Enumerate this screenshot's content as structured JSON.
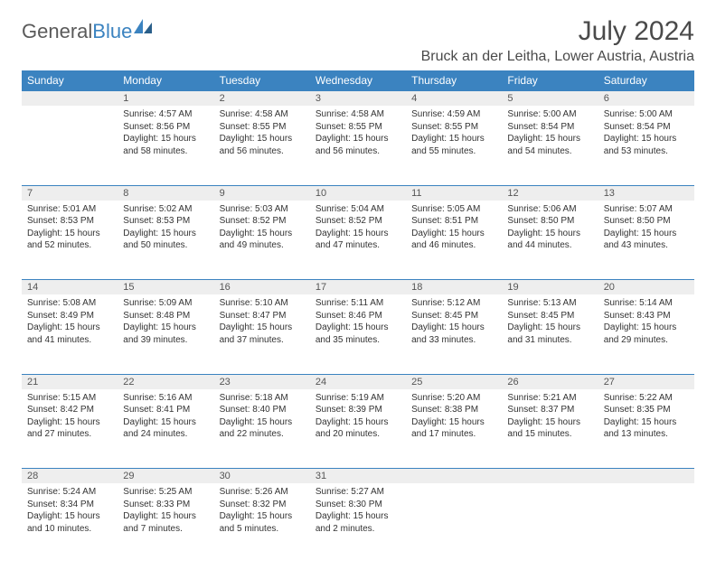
{
  "logo": {
    "word1": "General",
    "word2": "Blue"
  },
  "title": "July 2024",
  "location": "Bruck an der Leitha, Lower Austria, Austria",
  "colors": {
    "header_bg": "#3b83c0",
    "header_text": "#ffffff",
    "daynum_bg": "#eeeeee",
    "border": "#3b83c0",
    "text": "#333333",
    "title_text": "#4a4a4a",
    "logo_gray": "#5a5a5a",
    "logo_blue": "#3b83c0"
  },
  "weekdays": [
    "Sunday",
    "Monday",
    "Tuesday",
    "Wednesday",
    "Thursday",
    "Friday",
    "Saturday"
  ],
  "weeks": [
    {
      "nums": [
        "",
        "1",
        "2",
        "3",
        "4",
        "5",
        "6"
      ],
      "cells": [
        null,
        {
          "sr": "Sunrise: 4:57 AM",
          "ss": "Sunset: 8:56 PM",
          "d1": "Daylight: 15 hours",
          "d2": "and 58 minutes."
        },
        {
          "sr": "Sunrise: 4:58 AM",
          "ss": "Sunset: 8:55 PM",
          "d1": "Daylight: 15 hours",
          "d2": "and 56 minutes."
        },
        {
          "sr": "Sunrise: 4:58 AM",
          "ss": "Sunset: 8:55 PM",
          "d1": "Daylight: 15 hours",
          "d2": "and 56 minutes."
        },
        {
          "sr": "Sunrise: 4:59 AM",
          "ss": "Sunset: 8:55 PM",
          "d1": "Daylight: 15 hours",
          "d2": "and 55 minutes."
        },
        {
          "sr": "Sunrise: 5:00 AM",
          "ss": "Sunset: 8:54 PM",
          "d1": "Daylight: 15 hours",
          "d2": "and 54 minutes."
        },
        {
          "sr": "Sunrise: 5:00 AM",
          "ss": "Sunset: 8:54 PM",
          "d1": "Daylight: 15 hours",
          "d2": "and 53 minutes."
        }
      ]
    },
    {
      "nums": [
        "7",
        "8",
        "9",
        "10",
        "11",
        "12",
        "13"
      ],
      "cells": [
        {
          "sr": "Sunrise: 5:01 AM",
          "ss": "Sunset: 8:53 PM",
          "d1": "Daylight: 15 hours",
          "d2": "and 52 minutes."
        },
        {
          "sr": "Sunrise: 5:02 AM",
          "ss": "Sunset: 8:53 PM",
          "d1": "Daylight: 15 hours",
          "d2": "and 50 minutes."
        },
        {
          "sr": "Sunrise: 5:03 AM",
          "ss": "Sunset: 8:52 PM",
          "d1": "Daylight: 15 hours",
          "d2": "and 49 minutes."
        },
        {
          "sr": "Sunrise: 5:04 AM",
          "ss": "Sunset: 8:52 PM",
          "d1": "Daylight: 15 hours",
          "d2": "and 47 minutes."
        },
        {
          "sr": "Sunrise: 5:05 AM",
          "ss": "Sunset: 8:51 PM",
          "d1": "Daylight: 15 hours",
          "d2": "and 46 minutes."
        },
        {
          "sr": "Sunrise: 5:06 AM",
          "ss": "Sunset: 8:50 PM",
          "d1": "Daylight: 15 hours",
          "d2": "and 44 minutes."
        },
        {
          "sr": "Sunrise: 5:07 AM",
          "ss": "Sunset: 8:50 PM",
          "d1": "Daylight: 15 hours",
          "d2": "and 43 minutes."
        }
      ]
    },
    {
      "nums": [
        "14",
        "15",
        "16",
        "17",
        "18",
        "19",
        "20"
      ],
      "cells": [
        {
          "sr": "Sunrise: 5:08 AM",
          "ss": "Sunset: 8:49 PM",
          "d1": "Daylight: 15 hours",
          "d2": "and 41 minutes."
        },
        {
          "sr": "Sunrise: 5:09 AM",
          "ss": "Sunset: 8:48 PM",
          "d1": "Daylight: 15 hours",
          "d2": "and 39 minutes."
        },
        {
          "sr": "Sunrise: 5:10 AM",
          "ss": "Sunset: 8:47 PM",
          "d1": "Daylight: 15 hours",
          "d2": "and 37 minutes."
        },
        {
          "sr": "Sunrise: 5:11 AM",
          "ss": "Sunset: 8:46 PM",
          "d1": "Daylight: 15 hours",
          "d2": "and 35 minutes."
        },
        {
          "sr": "Sunrise: 5:12 AM",
          "ss": "Sunset: 8:45 PM",
          "d1": "Daylight: 15 hours",
          "d2": "and 33 minutes."
        },
        {
          "sr": "Sunrise: 5:13 AM",
          "ss": "Sunset: 8:45 PM",
          "d1": "Daylight: 15 hours",
          "d2": "and 31 minutes."
        },
        {
          "sr": "Sunrise: 5:14 AM",
          "ss": "Sunset: 8:43 PM",
          "d1": "Daylight: 15 hours",
          "d2": "and 29 minutes."
        }
      ]
    },
    {
      "nums": [
        "21",
        "22",
        "23",
        "24",
        "25",
        "26",
        "27"
      ],
      "cells": [
        {
          "sr": "Sunrise: 5:15 AM",
          "ss": "Sunset: 8:42 PM",
          "d1": "Daylight: 15 hours",
          "d2": "and 27 minutes."
        },
        {
          "sr": "Sunrise: 5:16 AM",
          "ss": "Sunset: 8:41 PM",
          "d1": "Daylight: 15 hours",
          "d2": "and 24 minutes."
        },
        {
          "sr": "Sunrise: 5:18 AM",
          "ss": "Sunset: 8:40 PM",
          "d1": "Daylight: 15 hours",
          "d2": "and 22 minutes."
        },
        {
          "sr": "Sunrise: 5:19 AM",
          "ss": "Sunset: 8:39 PM",
          "d1": "Daylight: 15 hours",
          "d2": "and 20 minutes."
        },
        {
          "sr": "Sunrise: 5:20 AM",
          "ss": "Sunset: 8:38 PM",
          "d1": "Daylight: 15 hours",
          "d2": "and 17 minutes."
        },
        {
          "sr": "Sunrise: 5:21 AM",
          "ss": "Sunset: 8:37 PM",
          "d1": "Daylight: 15 hours",
          "d2": "and 15 minutes."
        },
        {
          "sr": "Sunrise: 5:22 AM",
          "ss": "Sunset: 8:35 PM",
          "d1": "Daylight: 15 hours",
          "d2": "and 13 minutes."
        }
      ]
    },
    {
      "nums": [
        "28",
        "29",
        "30",
        "31",
        "",
        "",
        ""
      ],
      "cells": [
        {
          "sr": "Sunrise: 5:24 AM",
          "ss": "Sunset: 8:34 PM",
          "d1": "Daylight: 15 hours",
          "d2": "and 10 minutes."
        },
        {
          "sr": "Sunrise: 5:25 AM",
          "ss": "Sunset: 8:33 PM",
          "d1": "Daylight: 15 hours",
          "d2": "and 7 minutes."
        },
        {
          "sr": "Sunrise: 5:26 AM",
          "ss": "Sunset: 8:32 PM",
          "d1": "Daylight: 15 hours",
          "d2": "and 5 minutes."
        },
        {
          "sr": "Sunrise: 5:27 AM",
          "ss": "Sunset: 8:30 PM",
          "d1": "Daylight: 15 hours",
          "d2": "and 2 minutes."
        },
        null,
        null,
        null
      ]
    }
  ]
}
